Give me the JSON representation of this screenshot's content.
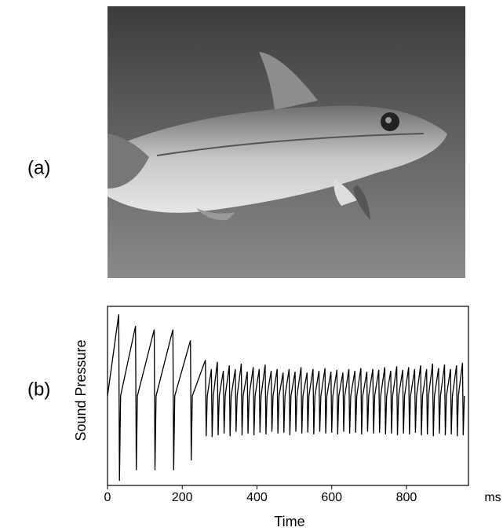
{
  "figure": {
    "panel_labels": [
      "(a)",
      "(b)"
    ]
  },
  "chart_data": {
    "type": "line",
    "xlabel": "Time",
    "ylabel": "Sound Pressure",
    "x_unit": "ms",
    "xlim": [
      0,
      966
    ],
    "ylim": [
      -1,
      1
    ],
    "xticks": [
      0,
      200,
      400,
      600,
      800
    ],
    "color": "#000000",
    "x": [
      0,
      30,
      32,
      35,
      75,
      77,
      80,
      125,
      127,
      130,
      175,
      177,
      180,
      222,
      224,
      227,
      262,
      264,
      267,
      278,
      280,
      283,
      294,
      296,
      299,
      310,
      312,
      315,
      326,
      328,
      331,
      342,
      344,
      347,
      358,
      360,
      363,
      374,
      376,
      379,
      390,
      392,
      395,
      406,
      408,
      411,
      422,
      424,
      427,
      438,
      440,
      443,
      454,
      456,
      459,
      470,
      472,
      475,
      486,
      488,
      491,
      502,
      504,
      507,
      518,
      520,
      523,
      534,
      536,
      539,
      550,
      552,
      555,
      566,
      568,
      571,
      582,
      584,
      587,
      598,
      600,
      603,
      614,
      616,
      619,
      630,
      632,
      635,
      646,
      648,
      651,
      662,
      664,
      667,
      678,
      680,
      683,
      694,
      696,
      699,
      710,
      712,
      715,
      726,
      728,
      731,
      742,
      744,
      747,
      758,
      760,
      763,
      774,
      776,
      779,
      790,
      792,
      795,
      806,
      808,
      811,
      822,
      824,
      827,
      838,
      840,
      843,
      854,
      856,
      859,
      870,
      872,
      875,
      886,
      888,
      891,
      902,
      904,
      907,
      918,
      920,
      923,
      934,
      936,
      939,
      950,
      952,
      955
    ],
    "values": [
      0,
      0.91,
      -0.95,
      0,
      0.78,
      -0.83,
      0,
      0.74,
      -0.83,
      0,
      0.74,
      -0.83,
      0,
      0.62,
      -0.72,
      0,
      0.4,
      -0.45,
      0,
      0.3,
      -0.46,
      0,
      0.38,
      -0.44,
      0,
      0.28,
      -0.42,
      0,
      0.34,
      -0.45,
      0,
      0.3,
      -0.4,
      0,
      0.36,
      -0.44,
      0,
      0.27,
      -0.42,
      0,
      0.32,
      -0.44,
      0,
      0.3,
      -0.41,
      0,
      0.35,
      -0.43,
      0,
      0.28,
      -0.4,
      0,
      0.3,
      -0.42,
      0,
      0.26,
      -0.41,
      0,
      0.3,
      -0.44,
      0,
      0.27,
      -0.4,
      0,
      0.32,
      -0.42,
      0,
      0.26,
      -0.41,
      0,
      0.3,
      -0.43,
      0,
      0.28,
      -0.4,
      0,
      0.31,
      -0.42,
      0,
      0.27,
      -0.41,
      0,
      0.29,
      -0.43,
      0,
      0.26,
      -0.4,
      0,
      0.3,
      -0.42,
      0,
      0.28,
      -0.41,
      0,
      0.31,
      -0.43,
      0,
      0.27,
      -0.4,
      0,
      0.3,
      -0.42,
      0,
      0.29,
      -0.41,
      0,
      0.32,
      -0.43,
      0,
      0.28,
      -0.42,
      0,
      0.33,
      -0.44,
      0,
      0.29,
      -0.42,
      0,
      0.32,
      -0.43,
      0,
      0.3,
      -0.41,
      0,
      0.34,
      -0.44,
      0,
      0.3,
      -0.43,
      0,
      0.36,
      -0.45,
      0,
      0.31,
      -0.42,
      0,
      0.35,
      -0.44,
      0,
      0.3,
      -0.43,
      0,
      0.34,
      -0.45,
      0,
      0.37,
      -0.44,
      0
    ]
  }
}
